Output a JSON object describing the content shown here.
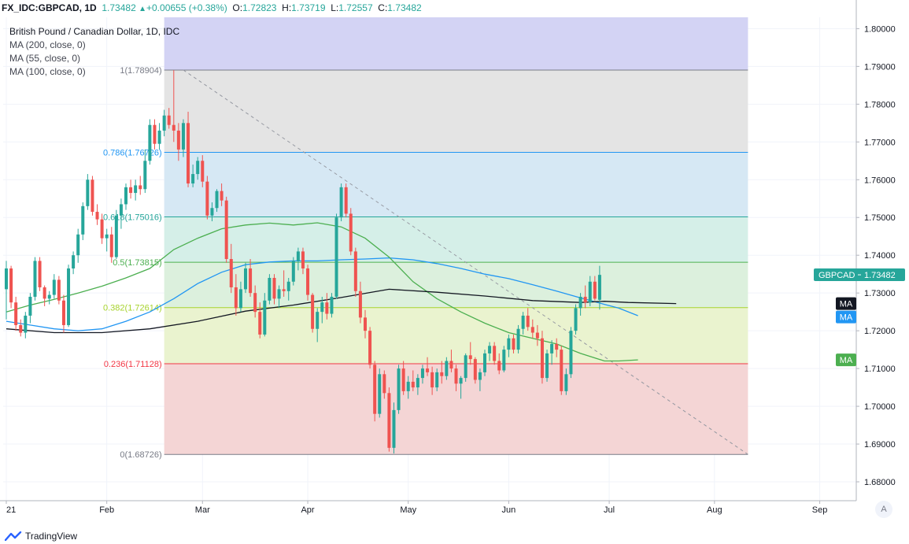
{
  "header": {
    "symbol": "FX_IDC:GBPCAD, 1D",
    "last": "1.73482",
    "change": "+0.00655 (+0.38%)",
    "open_label": "O:",
    "open": "1.72823",
    "high_label": "H:",
    "high": "1.73719",
    "low_label": "L:",
    "low": "1.72557",
    "close_label": "C:",
    "close": "1.73482"
  },
  "legend": {
    "title": "British Pound / Canadian Dollar, 1D, IDC",
    "ma1": "MA (200, close, 0)",
    "ma2": "MA (55, close, 0)",
    "ma3": "MA (100, close, 0)"
  },
  "footer": {
    "brand": "TradingView",
    "auto_label": "A"
  },
  "colors": {
    "up": "#26a69a",
    "down": "#ef5350",
    "ma200": "#131722",
    "ma55": "#4caf50",
    "ma100": "#2196f3",
    "axis_text": "#131722",
    "badge": "#26a69a"
  },
  "chart_data": {
    "type": "candlestick",
    "title": "British Pound / Canadian Dollar, 1D, IDC",
    "ylim": [
      1.675,
      1.803
    ],
    "y_ticks": [
      "1.80000",
      "1.79000",
      "1.78000",
      "1.77000",
      "1.76000",
      "1.75000",
      "1.74000",
      "1.73000",
      "1.72000",
      "1.71000",
      "1.70000",
      "1.69000",
      "1.68000"
    ],
    "x_ticks": [
      {
        "label": "21",
        "index": 0
      },
      {
        "label": "Feb",
        "index": 21
      },
      {
        "label": "Mar",
        "index": 41
      },
      {
        "label": "Apr",
        "index": 63
      },
      {
        "label": "May",
        "index": 84
      },
      {
        "label": "Jun",
        "index": 105
      },
      {
        "label": "Jul",
        "index": 126
      },
      {
        "label": "Aug",
        "index": 148
      },
      {
        "label": "Sep",
        "index": 170
      }
    ],
    "fibonacci": {
      "start_index": 33,
      "end_index": 155,
      "levels": [
        {
          "label": "1(1.78904)",
          "ratio": "1",
          "value": 1.78904,
          "line": "#787b86",
          "fill": "#e4e4e4"
        },
        {
          "label": "0.786(1.76726)",
          "ratio": "0.786",
          "value": 1.76726,
          "line": "#2196f3",
          "fill": "#d6e8f4"
        },
        {
          "label": "0.618(1.75016)",
          "ratio": "0.618",
          "value": 1.75016,
          "line": "#26a69a",
          "fill": "#d5efe8"
        },
        {
          "label": "0.5(1.73815)",
          "ratio": "0.5",
          "value": 1.73815,
          "line": "#4caf50",
          "fill": "#dcf0dd"
        },
        {
          "label": "0.382(1.72614)",
          "ratio": "0.382",
          "value": 1.72614,
          "line": "#a7d32d",
          "fill": "#eaf3cf"
        },
        {
          "label": "0.236(1.71128)",
          "ratio": "0.236",
          "value": 1.71128,
          "line": "#f23645",
          "fill": "#f4d5d5"
        },
        {
          "label": "0(1.68726)",
          "ratio": "0",
          "value": 1.68726,
          "line": "#787b86",
          "fill": "#f4d5d5"
        }
      ],
      "top_fill": "#d3d3f4",
      "trend_line": {
        "start": [
          37,
          1.78904
        ],
        "end": [
          155,
          1.68726
        ]
      }
    },
    "badges": [
      {
        "label": "GBPCAD",
        "value": 1.73482,
        "price": "1.73482",
        "color": "#26a69a"
      },
      {
        "label": "MA",
        "value": 1.7272,
        "color": "#131722"
      },
      {
        "label": "MA",
        "value": 1.724,
        "color": "#2196f3"
      },
      {
        "label": "MA",
        "value": 1.7123,
        "color": "#4caf50"
      }
    ],
    "candles": [
      [
        1.731,
        1.7385,
        1.723,
        1.7365
      ],
      [
        1.7365,
        1.7372,
        1.726,
        1.7275
      ],
      [
        1.7275,
        1.729,
        1.72,
        1.7215
      ],
      [
        1.7215,
        1.723,
        1.7185,
        1.7195
      ],
      [
        1.7195,
        1.725,
        1.718,
        1.724
      ],
      [
        1.724,
        1.73,
        1.722,
        1.729
      ],
      [
        1.729,
        1.7395,
        1.728,
        1.7385
      ],
      [
        1.7385,
        1.7395,
        1.7305,
        1.7315
      ],
      [
        1.7315,
        1.732,
        1.7265,
        1.7285
      ],
      [
        1.7285,
        1.7305,
        1.727,
        1.7295
      ],
      [
        1.7295,
        1.735,
        1.7285,
        1.7335
      ],
      [
        1.7335,
        1.7345,
        1.727,
        1.728
      ],
      [
        1.728,
        1.7295,
        1.7195,
        1.7215
      ],
      [
        1.7215,
        1.7375,
        1.721,
        1.7365
      ],
      [
        1.7365,
        1.741,
        1.735,
        1.74
      ],
      [
        1.74,
        1.747,
        1.738,
        1.7455
      ],
      [
        1.7455,
        1.754,
        1.744,
        1.753
      ],
      [
        1.753,
        1.7615,
        1.752,
        1.76
      ],
      [
        1.76,
        1.761,
        1.7505,
        1.7515
      ],
      [
        1.7515,
        1.7535,
        1.748,
        1.7495
      ],
      [
        1.7495,
        1.751,
        1.743,
        1.7445
      ],
      [
        1.7445,
        1.747,
        1.741,
        1.7455
      ],
      [
        1.7455,
        1.7475,
        1.738,
        1.7395
      ],
      [
        1.7395,
        1.752,
        1.739,
        1.7505
      ],
      [
        1.7505,
        1.755,
        1.747,
        1.7535
      ],
      [
        1.7535,
        1.759,
        1.752,
        1.758
      ],
      [
        1.758,
        1.76,
        1.755,
        1.7565
      ],
      [
        1.7565,
        1.76,
        1.7545,
        1.7585
      ],
      [
        1.7585,
        1.761,
        1.756,
        1.7575
      ],
      [
        1.7575,
        1.768,
        1.7565,
        1.765
      ],
      [
        1.765,
        1.776,
        1.764,
        1.7745
      ],
      [
        1.7745,
        1.776,
        1.768,
        1.7695
      ],
      [
        1.7695,
        1.775,
        1.768,
        1.773
      ],
      [
        1.773,
        1.7785,
        1.7715,
        1.777
      ],
      [
        1.777,
        1.779,
        1.7735,
        1.7745
      ],
      [
        1.7745,
        1.789,
        1.77,
        1.773
      ],
      [
        1.773,
        1.775,
        1.765,
        1.768
      ],
      [
        1.768,
        1.776,
        1.766,
        1.775
      ],
      [
        1.775,
        1.778,
        1.758,
        1.759
      ],
      [
        1.759,
        1.764,
        1.758,
        1.7615
      ],
      [
        1.7615,
        1.766,
        1.76,
        1.765
      ],
      [
        1.765,
        1.7665,
        1.758,
        1.7595
      ],
      [
        1.7595,
        1.761,
        1.7495,
        1.7505
      ],
      [
        1.7505,
        1.754,
        1.749,
        1.7525
      ],
      [
        1.7525,
        1.7575,
        1.7515,
        1.757
      ],
      [
        1.757,
        1.759,
        1.753,
        1.7545
      ],
      [
        1.7545,
        1.7555,
        1.738,
        1.739
      ],
      [
        1.739,
        1.743,
        1.73,
        1.7315
      ],
      [
        1.7315,
        1.735,
        1.724,
        1.726
      ],
      [
        1.726,
        1.733,
        1.725,
        1.731
      ],
      [
        1.731,
        1.738,
        1.73,
        1.7365
      ],
      [
        1.7365,
        1.739,
        1.729,
        1.73
      ],
      [
        1.73,
        1.732,
        1.7235,
        1.725
      ],
      [
        1.725,
        1.7275,
        1.718,
        1.719
      ],
      [
        1.719,
        1.73,
        1.7185,
        1.728
      ],
      [
        1.728,
        1.735,
        1.727,
        1.734
      ],
      [
        1.734,
        1.735,
        1.727,
        1.7285
      ],
      [
        1.7285,
        1.732,
        1.726,
        1.731
      ],
      [
        1.731,
        1.736,
        1.729,
        1.7305
      ],
      [
        1.7305,
        1.734,
        1.728,
        1.733
      ],
      [
        1.733,
        1.7395,
        1.732,
        1.7385
      ],
      [
        1.7385,
        1.742,
        1.736,
        1.741
      ],
      [
        1.741,
        1.742,
        1.735,
        1.7365
      ],
      [
        1.7365,
        1.7375,
        1.728,
        1.7295
      ],
      [
        1.7295,
        1.73,
        1.7195,
        1.7205
      ],
      [
        1.7205,
        1.726,
        1.717,
        1.725
      ],
      [
        1.725,
        1.729,
        1.722,
        1.7275
      ],
      [
        1.7275,
        1.73,
        1.723,
        1.7245
      ],
      [
        1.7245,
        1.73,
        1.7235,
        1.729
      ],
      [
        1.729,
        1.751,
        1.7285,
        1.75
      ],
      [
        1.75,
        1.759,
        1.749,
        1.758
      ],
      [
        1.758,
        1.759,
        1.75,
        1.751
      ],
      [
        1.751,
        1.7525,
        1.74,
        1.741
      ],
      [
        1.741,
        1.742,
        1.729,
        1.7305
      ],
      [
        1.7305,
        1.733,
        1.722,
        1.7235
      ],
      [
        1.7235,
        1.7255,
        1.718,
        1.72
      ],
      [
        1.72,
        1.721,
        1.71,
        1.711
      ],
      [
        1.711,
        1.712,
        1.696,
        1.698
      ],
      [
        1.698,
        1.71,
        1.697,
        1.7085
      ],
      [
        1.7085,
        1.7095,
        1.702,
        1.7035
      ],
      [
        1.7035,
        1.705,
        1.688,
        1.689
      ],
      [
        1.689,
        1.701,
        1.6875,
        1.699
      ],
      [
        1.699,
        1.711,
        1.698,
        1.71
      ],
      [
        1.71,
        1.712,
        1.703,
        1.704
      ],
      [
        1.704,
        1.708,
        1.702,
        1.7065
      ],
      [
        1.7065,
        1.7095,
        1.704,
        1.705
      ],
      [
        1.705,
        1.7085,
        1.703,
        1.7075
      ],
      [
        1.7075,
        1.711,
        1.706,
        1.71
      ],
      [
        1.71,
        1.713,
        1.708,
        1.709
      ],
      [
        1.709,
        1.7105,
        1.703,
        1.705
      ],
      [
        1.705,
        1.71,
        1.704,
        1.709
      ],
      [
        1.709,
        1.712,
        1.706,
        1.708
      ],
      [
        1.708,
        1.713,
        1.707,
        1.712
      ],
      [
        1.712,
        1.715,
        1.709,
        1.71
      ],
      [
        1.71,
        1.711,
        1.704,
        1.706
      ],
      [
        1.706,
        1.708,
        1.702,
        1.7075
      ],
      [
        1.7075,
        1.714,
        1.7065,
        1.7135
      ],
      [
        1.7135,
        1.717,
        1.711,
        1.7125
      ],
      [
        1.7125,
        1.713,
        1.706,
        1.707
      ],
      [
        1.707,
        1.71,
        1.704,
        1.709
      ],
      [
        1.709,
        1.715,
        1.708,
        1.714
      ],
      [
        1.714,
        1.717,
        1.712,
        1.716
      ],
      [
        1.716,
        1.717,
        1.711,
        1.712
      ],
      [
        1.712,
        1.714,
        1.7085,
        1.7095
      ],
      [
        1.7095,
        1.716,
        1.709,
        1.715
      ],
      [
        1.715,
        1.719,
        1.713,
        1.718
      ],
      [
        1.718,
        1.719,
        1.714,
        1.715
      ],
      [
        1.715,
        1.7215,
        1.714,
        1.7205
      ],
      [
        1.7205,
        1.725,
        1.719,
        1.724
      ],
      [
        1.724,
        1.726,
        1.72,
        1.721
      ],
      [
        1.721,
        1.723,
        1.718,
        1.7195
      ],
      [
        1.7195,
        1.7215,
        1.716,
        1.718
      ],
      [
        1.718,
        1.72,
        1.706,
        1.7075
      ],
      [
        1.7075,
        1.715,
        1.7065,
        1.714
      ],
      [
        1.714,
        1.7175,
        1.711,
        1.7165
      ],
      [
        1.7165,
        1.718,
        1.713,
        1.715
      ],
      [
        1.715,
        1.716,
        1.703,
        1.704
      ],
      [
        1.704,
        1.71,
        1.703,
        1.7085
      ],
      [
        1.7085,
        1.721,
        1.7075,
        1.72
      ],
      [
        1.72,
        1.727,
        1.719,
        1.726
      ],
      [
        1.726,
        1.73,
        1.724,
        1.729
      ],
      [
        1.729,
        1.732,
        1.726,
        1.7275
      ],
      [
        1.7275,
        1.7345,
        1.7265,
        1.733
      ],
      [
        1.733,
        1.7345,
        1.728,
        1.7285
      ],
      [
        1.7282,
        1.7372,
        1.7256,
        1.7348
      ]
    ],
    "ma200": [
      [
        0,
        1.7205
      ],
      [
        10,
        1.7195
      ],
      [
        20,
        1.7195
      ],
      [
        30,
        1.7205
      ],
      [
        40,
        1.7225
      ],
      [
        50,
        1.7252
      ],
      [
        60,
        1.7268
      ],
      [
        70,
        1.7288
      ],
      [
        80,
        1.731
      ],
      [
        90,
        1.7302
      ],
      [
        100,
        1.7292
      ],
      [
        110,
        1.728
      ],
      [
        120,
        1.7275
      ],
      [
        125,
        1.7278
      ],
      [
        130,
        1.7275
      ],
      [
        140,
        1.7272
      ]
    ],
    "ma55": [
      [
        0,
        1.725
      ],
      [
        5,
        1.7268
      ],
      [
        10,
        1.7283
      ],
      [
        15,
        1.73
      ],
      [
        20,
        1.7318
      ],
      [
        25,
        1.734
      ],
      [
        30,
        1.7365
      ],
      [
        35,
        1.7415
      ],
      [
        40,
        1.7445
      ],
      [
        45,
        1.747
      ],
      [
        50,
        1.748
      ],
      [
        55,
        1.7485
      ],
      [
        60,
        1.748
      ],
      [
        65,
        1.7486
      ],
      [
        70,
        1.7475
      ],
      [
        75,
        1.7445
      ],
      [
        80,
        1.7395
      ],
      [
        85,
        1.733
      ],
      [
        90,
        1.7285
      ],
      [
        95,
        1.725
      ],
      [
        100,
        1.722
      ],
      [
        105,
        1.7195
      ],
      [
        110,
        1.718
      ],
      [
        115,
        1.7165
      ],
      [
        120,
        1.714
      ],
      [
        125,
        1.712
      ],
      [
        128,
        1.712
      ],
      [
        132,
        1.7123
      ]
    ],
    "ma100": [
      [
        0,
        1.7225
      ],
      [
        5,
        1.7215
      ],
      [
        10,
        1.7205
      ],
      [
        15,
        1.72
      ],
      [
        20,
        1.7205
      ],
      [
        25,
        1.7225
      ],
      [
        30,
        1.725
      ],
      [
        35,
        1.7285
      ],
      [
        40,
        1.7325
      ],
      [
        45,
        1.7355
      ],
      [
        50,
        1.7375
      ],
      [
        55,
        1.7382
      ],
      [
        60,
        1.7385
      ],
      [
        65,
        1.7385
      ],
      [
        70,
        1.7388
      ],
      [
        75,
        1.739
      ],
      [
        80,
        1.7393
      ],
      [
        85,
        1.7388
      ],
      [
        90,
        1.7378
      ],
      [
        95,
        1.7365
      ],
      [
        100,
        1.735
      ],
      [
        105,
        1.7338
      ],
      [
        110,
        1.7322
      ],
      [
        115,
        1.7305
      ],
      [
        120,
        1.7287
      ],
      [
        125,
        1.727
      ],
      [
        128,
        1.726
      ],
      [
        132,
        1.724
      ]
    ]
  }
}
